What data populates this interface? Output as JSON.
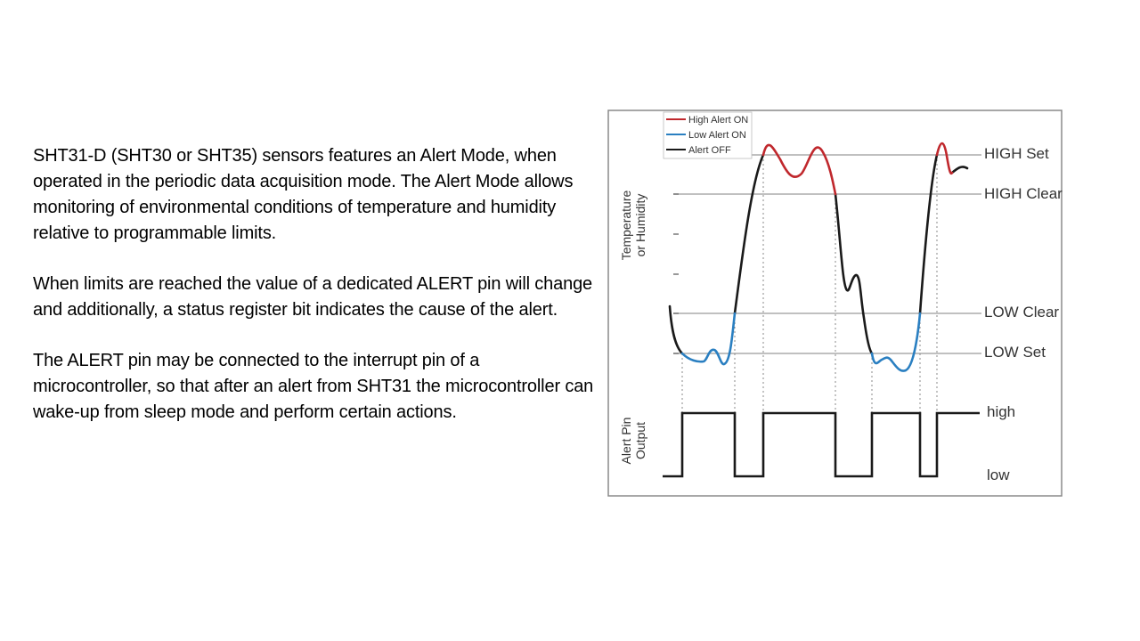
{
  "paragraphs": [
    "SHT31-D (SHT30 or SHT35) sensors features an Alert Mode, when operated in the periodic data acquisition mode. The Alert Mode allows monitoring of environmental conditions of temperature and humidity relative to programmable limits.",
    "When limits are reached the value of a dedicated ALERT pin will change and additionally, a status register bit indicates the cause of the alert.",
    "The ALERT pin may be connected to the interrupt pin of a microcontroller, so that after an alert from SHT31 the microcontroller can wake-up from sleep mode and perform certain actions."
  ],
  "diagram": {
    "legend": {
      "high_alert_on": "High Alert ON",
      "low_alert_on": "Low Alert ON",
      "alert_off": "Alert OFF"
    },
    "y_axis_label_line1": "Temperature",
    "y_axis_label_line2": "or Humidity",
    "lower_axis_label_line1": "Alert Pin",
    "lower_axis_label_line2": "Output",
    "thresholds": {
      "high_set": "HIGH Set",
      "high_clear": "HIGH Clear",
      "low_clear": "LOW Clear",
      "low_set": "LOW Set"
    },
    "output_levels": {
      "high": "high",
      "low": "low"
    },
    "colors": {
      "high_alert": "#c0282d",
      "low_alert": "#2a7fc1",
      "alert_off": "#1a1a1a",
      "threshold_line": "#9a9a9a",
      "frame": "#8a8a8a"
    }
  }
}
